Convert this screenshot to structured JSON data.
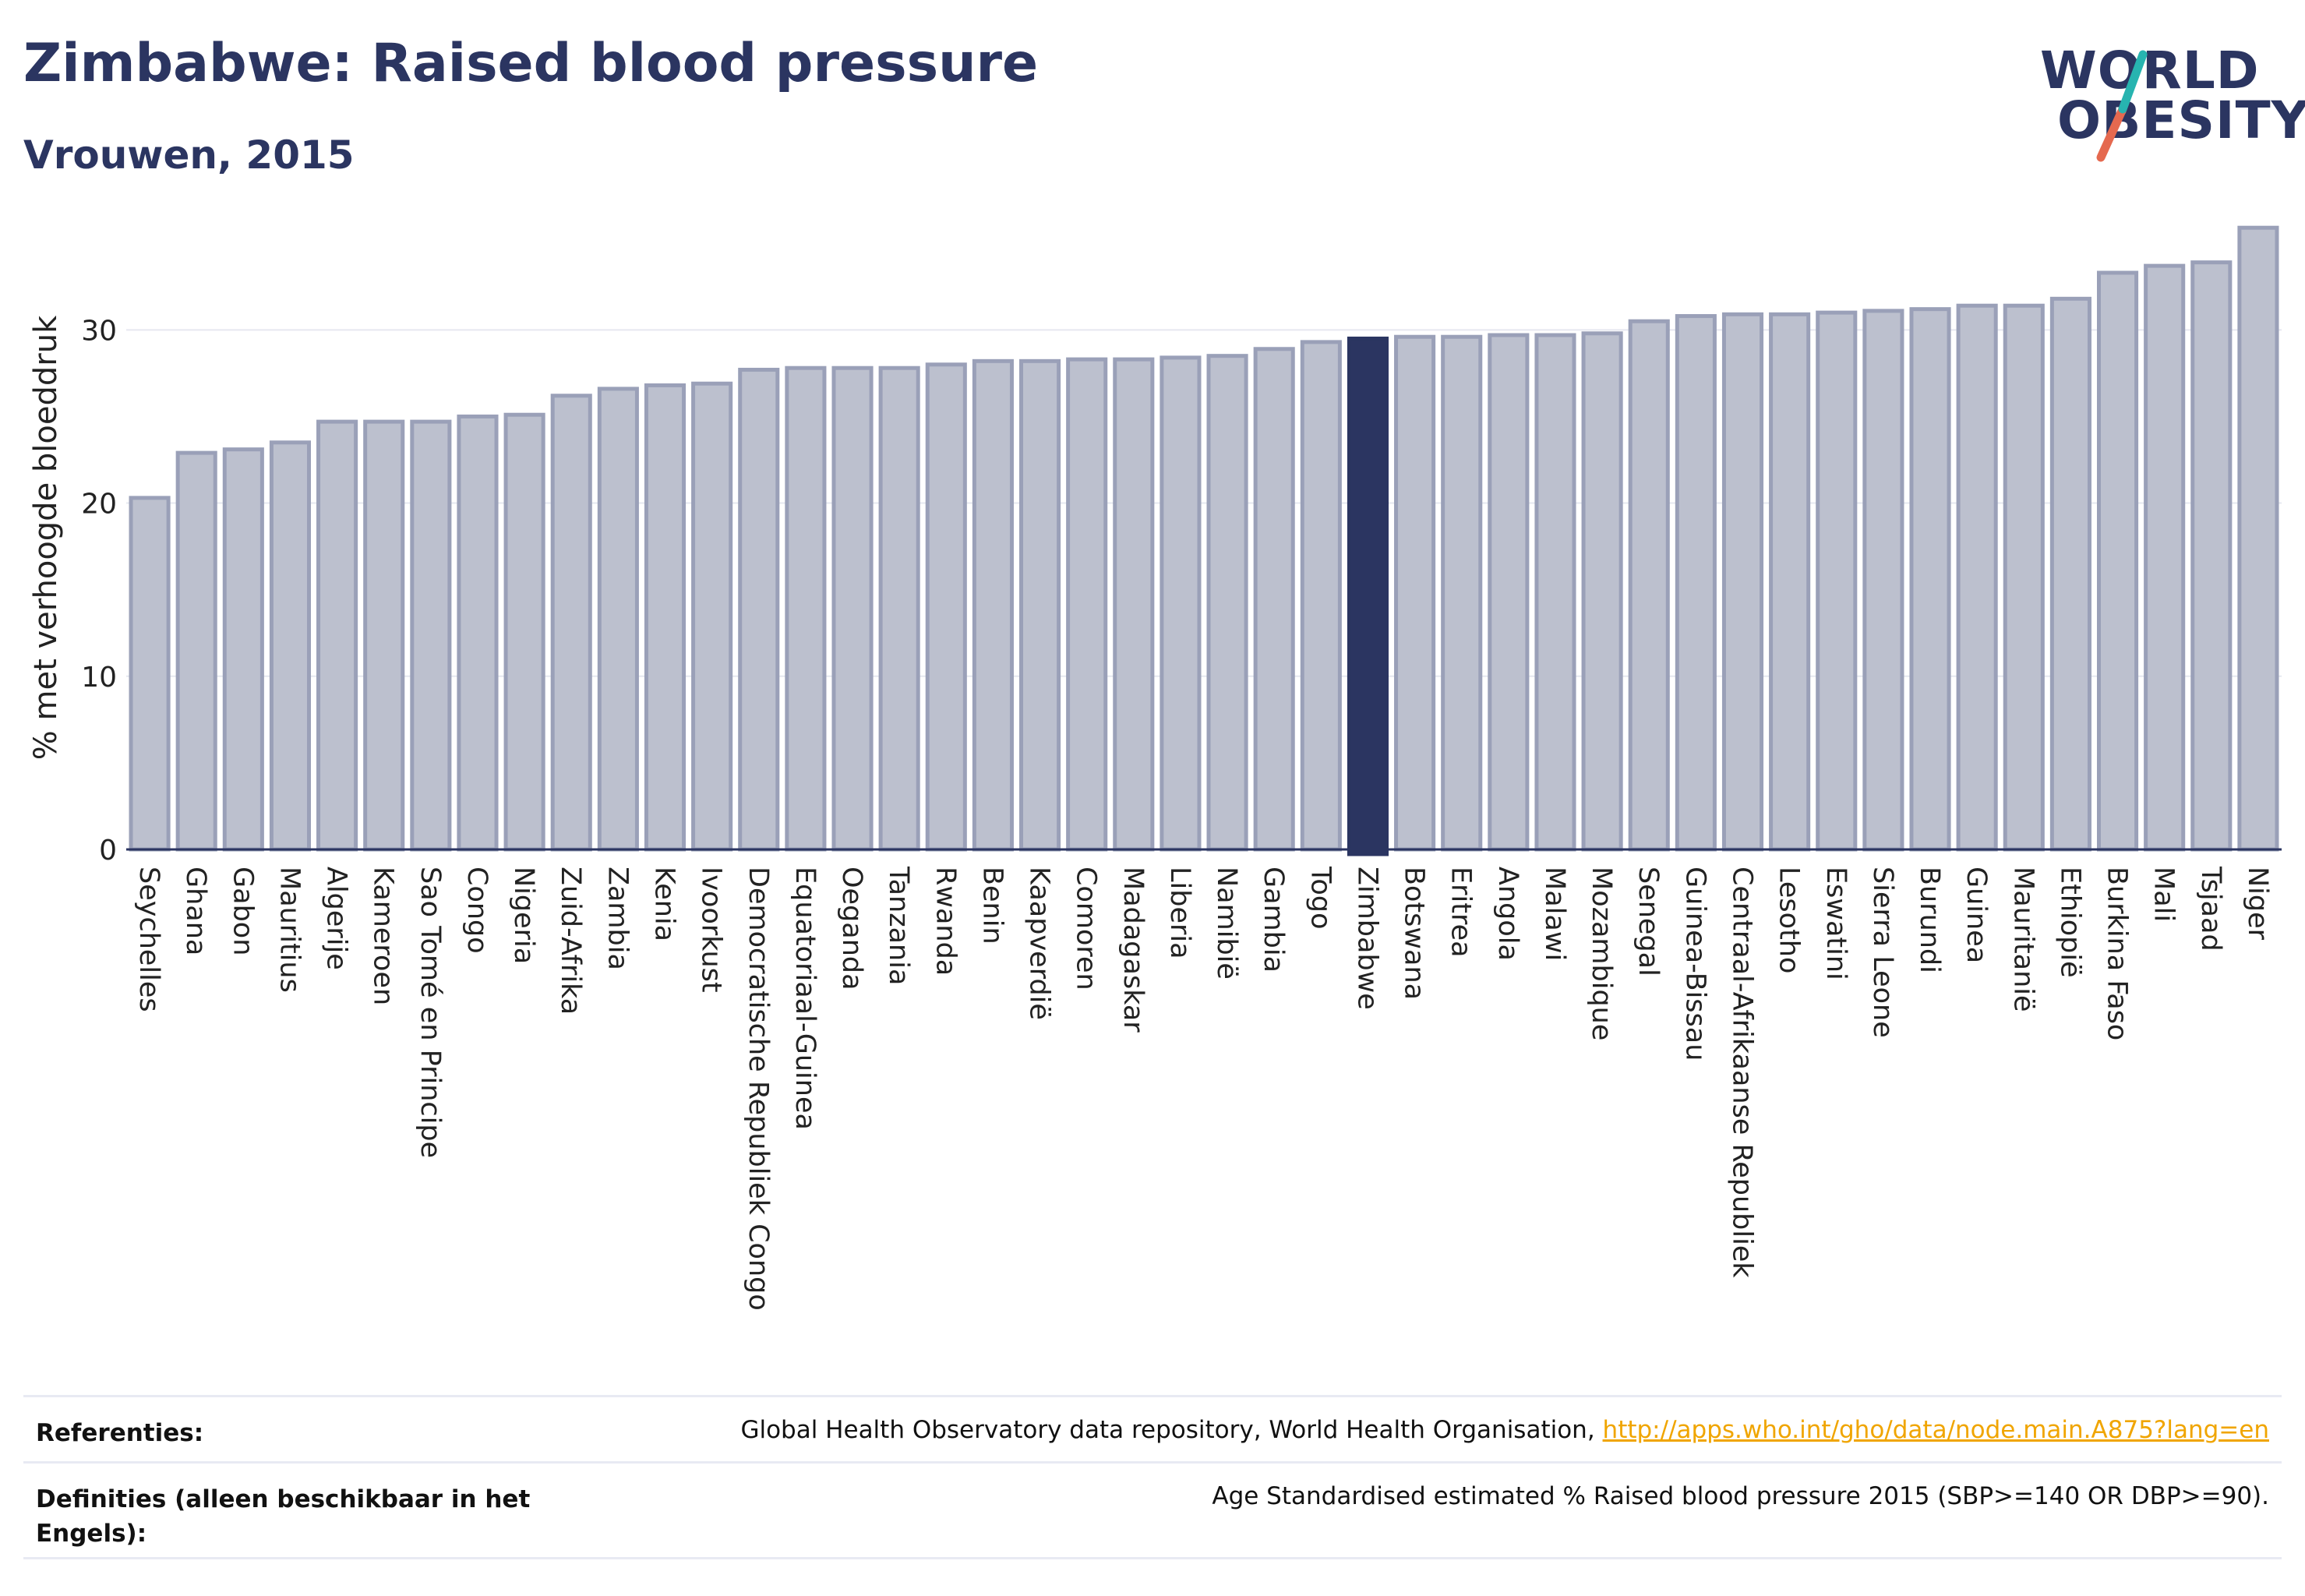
{
  "header": {
    "title": "Zimbabwe: Raised blood pressure",
    "subtitle": "Vrouwen, 2015"
  },
  "logo": {
    "line1": "WORLD",
    "line2": "OBESITY"
  },
  "colors": {
    "highlight": "#2b3561",
    "bar_fill": "#bcc0ce",
    "bar_stroke": "#9aa0b8",
    "grid": "#e6e8f0",
    "axis": "#2b3561",
    "link": "#f0a500",
    "logo_slash_top": "#27b4b0",
    "logo_slash_bottom": "#e5694f"
  },
  "chart_data": {
    "type": "bar",
    "ylabel": "% met verhoogde bloeddruk",
    "xlabel": "",
    "ylim": [
      0,
      36
    ],
    "yticks": [
      0,
      10,
      20,
      30
    ],
    "grid": true,
    "highlight": "Zimbabwe",
    "categories": [
      "Seychelles",
      "Ghana",
      "Gabon",
      "Mauritius",
      "Algerije",
      "Kameroen",
      "Sao Tomé en Principe",
      "Congo",
      "Nigeria",
      "Zuid-Afrika",
      "Zambia",
      "Kenia",
      "Ivoorkust",
      "Democratische Republiek Congo",
      "Equatoriaal-Guinea",
      "Oeganda",
      "Tanzania",
      "Rwanda",
      "Benin",
      "Kaapverdië",
      "Comoren",
      "Madagaskar",
      "Liberia",
      "Namibië",
      "Gambia",
      "Togo",
      "Zimbabwe",
      "Botswana",
      "Eritrea",
      "Angola",
      "Malawi",
      "Mozambique",
      "Senegal",
      "Guinea-Bissau",
      "Centraal-Afrikaanse Republiek",
      "Lesotho",
      "Eswatini",
      "Sierra Leone",
      "Burundi",
      "Guinea",
      "Mauritanië",
      "Ethiopië",
      "Burkina Faso",
      "Mali",
      "Tsjaad",
      "Niger"
    ],
    "values": [
      20.3,
      22.9,
      23.1,
      23.5,
      24.7,
      24.7,
      24.7,
      25.0,
      25.1,
      26.2,
      26.6,
      26.8,
      26.9,
      27.7,
      27.8,
      27.8,
      27.8,
      28.0,
      28.2,
      28.2,
      28.3,
      28.3,
      28.4,
      28.5,
      28.9,
      29.3,
      29.5,
      29.6,
      29.6,
      29.7,
      29.7,
      29.8,
      30.5,
      30.8,
      30.9,
      30.9,
      31.0,
      31.1,
      31.2,
      31.4,
      31.4,
      31.8,
      33.3,
      33.7,
      33.9,
      35.9
    ]
  },
  "footer": {
    "references_label": "Referenties:",
    "references_text": "Global Health Observatory data repository, World Health Organisation, ",
    "references_link": "http://apps.who.int/gho/data/node.main.A875?lang=en",
    "definitions_label": "Definities (alleen beschikbaar in het Engels):",
    "definitions_text": "Age Standardised estimated % Raised blood pressure 2015 (SBP>=140 OR DBP>=90)."
  }
}
